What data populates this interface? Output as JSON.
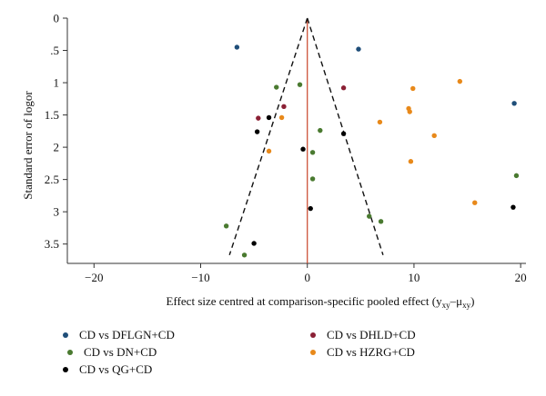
{
  "chart_data": {
    "type": "scatter",
    "xlabel": "Effect size centred at comparison-specific pooled effect (y",
    "xlabel_sub1": "xy",
    "xlabel_mid": "–μ",
    "xlabel_sub2": "xy",
    "xlabel_end": ")",
    "ylabel": "Standard error of logor",
    "xlim": [
      -22.5,
      20.5
    ],
    "ylim": [
      0,
      3.8
    ],
    "y_reversed": true,
    "x_ticks": [
      -20,
      -10,
      0,
      10,
      20
    ],
    "x_tick_labels": [
      "−20",
      "−10",
      "0",
      "10",
      "20"
    ],
    "y_ticks": [
      0,
      0.5,
      1,
      1.5,
      2,
      2.5,
      3,
      3.5
    ],
    "y_tick_labels": [
      "0",
      ".5",
      "1",
      "1.5",
      "2",
      "2.5",
      "3",
      "3.5"
    ],
    "reference_line": {
      "x": 0,
      "color": "#c8442a"
    },
    "funnel": {
      "apex": [
        0,
        0
      ],
      "left_base": [
        -7.3,
        3.67
      ],
      "right_base": [
        7.1,
        3.67
      ]
    },
    "legend_position": "bottom",
    "series": [
      {
        "name": "CD vs DFLGN+CD",
        "color": "#1f4e79",
        "points": [
          [
            -6.6,
            0.45
          ],
          [
            4.8,
            0.48
          ],
          [
            19.4,
            1.32
          ]
        ]
      },
      {
        "name": "CD vs DHLD+CD",
        "color": "#8b2035",
        "points": [
          [
            3.4,
            1.08
          ],
          [
            -2.2,
            1.37
          ],
          [
            -4.6,
            1.55
          ]
        ]
      },
      {
        "name": "CD vs DN+CD",
        "color": "#4a7a30",
        "points": [
          [
            -2.9,
            1.07
          ],
          [
            -0.7,
            1.03
          ],
          [
            1.2,
            1.74
          ],
          [
            0.5,
            2.08
          ],
          [
            0.5,
            2.49
          ],
          [
            5.8,
            3.07
          ],
          [
            6.9,
            3.15
          ],
          [
            -7.6,
            3.22
          ],
          [
            -5.9,
            3.67
          ],
          [
            19.6,
            2.44
          ]
        ]
      },
      {
        "name": "CD vs HZRG+CD",
        "color": "#e8891a",
        "points": [
          [
            14.3,
            0.98
          ],
          [
            9.9,
            1.09
          ],
          [
            9.5,
            1.4
          ],
          [
            9.6,
            1.45
          ],
          [
            6.8,
            1.61
          ],
          [
            11.9,
            1.82
          ],
          [
            -2.4,
            1.54
          ],
          [
            -3.6,
            2.06
          ],
          [
            9.7,
            2.22
          ],
          [
            15.7,
            2.86
          ]
        ]
      },
      {
        "name": "CD vs QG+CD",
        "color": "#000000",
        "points": [
          [
            -3.6,
            1.54
          ],
          [
            -4.7,
            1.76
          ],
          [
            3.4,
            1.79
          ],
          [
            -0.4,
            2.03
          ],
          [
            0.3,
            2.95
          ],
          [
            -5.0,
            3.49
          ],
          [
            19.3,
            2.93
          ]
        ]
      }
    ]
  }
}
